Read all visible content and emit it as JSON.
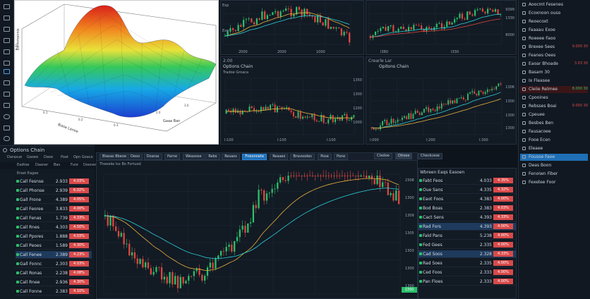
{
  "surface_panel": {
    "axis_label_left": "Eximmonnis",
    "axis_label_bottom": "Biasa Lanoe",
    "axis_label_right": "Gaaa Ban"
  },
  "top_chart_1": {
    "price_labels": [
      "Exp",
      "",
      "Exp",
      ""
    ],
    "time_labels": [
      "2000",
      "2000",
      "1000"
    ]
  },
  "top_chart_2": {
    "price_labels": [
      "9399",
      "1330",
      "8000",
      "3300"
    ],
    "time_labels": [
      "I380",
      "I330"
    ]
  },
  "mid_chart_1": {
    "title": "Options Chain",
    "subtitle": "Tradoe Groaca",
    "subtitle_2": "2:00",
    "price_labels": [
      "1350",
      "1300",
      "1200",
      "1000",
      "1200"
    ],
    "time_labels": [
      "I:100",
      "I:100",
      "I:100"
    ]
  },
  "mid_chart_2": {
    "title": "Opitons Chain",
    "price_labels": [
      "1306",
      "1300",
      "1300",
      "1300"
    ],
    "time_labels": [
      "I:000",
      "I:200",
      "I:300"
    ],
    "tag": "Crearle Lar"
  },
  "options_chain": {
    "title": "Options Chain",
    "toolbar": [
      "Daraxue",
      "Gaoee",
      "Daoe",
      "Poat",
      "Opn Goaco"
    ],
    "toolbar2": [
      "Eadtoe",
      "Daaner",
      "Bas",
      "Fure",
      "Doones"
    ],
    "col_header": "Ereet Eagee",
    "rows": [
      {
        "name": "Call Fesnse",
        "price": "2.933",
        "pct": "4.03%",
        "color": "#d94a4a"
      },
      {
        "name": "Call Phonse",
        "price": "2.939",
        "pct": "6.02%",
        "color": "#d94a4a"
      },
      {
        "name": "Gall Frone",
        "price": "4.389",
        "pct": "4.05%",
        "color": "#d94a4a"
      },
      {
        "name": "Call Feoree",
        "price": "3.833",
        "pct": "4.00%",
        "color": "#d94a4a"
      },
      {
        "name": "Call Fenas",
        "price": "1.739",
        "pct": "4.33%",
        "color": "#d94a4a"
      },
      {
        "name": "Call Rnes",
        "price": "4.303",
        "pct": "4.50%",
        "color": "#d94a4a"
      },
      {
        "name": "Call Ppores",
        "price": "1.888",
        "pct": "4.03%",
        "color": "#d94a4a"
      },
      {
        "name": "Call Peoes",
        "price": "1.589",
        "pct": "4.30%",
        "color": "#d94a4a"
      },
      {
        "name": "Call Fenee",
        "price": "2.389",
        "pct": "4.23%",
        "color": "#d94a4a"
      },
      {
        "name": "Gall Fonnc",
        "price": "2.303",
        "pct": "4.03%",
        "color": "#d94a4a"
      },
      {
        "name": "Call Ronas",
        "price": "2.238",
        "pct": "4.08%",
        "color": "#d94a4a"
      },
      {
        "name": "Call Rnee",
        "price": "2.936",
        "pct": "4.30%",
        "color": "#d94a4a"
      },
      {
        "name": "Call Fonne",
        "price": "2.383",
        "pct": "4.10%",
        "color": "#d94a4a"
      }
    ]
  },
  "main_chart": {
    "tabs": [
      "Blaoas Bbeoe",
      "Deoo",
      "Doaras",
      "Parne",
      "Weaoose",
      "Rebs",
      "Resaos",
      "Fneonnete",
      "Reaaes",
      "Bravoodes",
      "Pose",
      "Pone"
    ],
    "subtitle": "Theeeke Isx Bo Fortuod",
    "toolbar": [
      "Ctedoe",
      "Ditoee",
      "Checkcese"
    ],
    "price_labels": [
      "2308",
      "1300",
      "1309",
      "1305",
      "1303",
      "1300",
      "1300"
    ],
    "price_tag": "1350"
  },
  "right_chain": {
    "title": "Wbreen Eaqs Easoen",
    "rows": [
      {
        "name": "Fabt Feos",
        "price": "4.033",
        "pct": "4.35%",
        "color": "#d94a4a"
      },
      {
        "name": "Oue Sans",
        "price": "4.335",
        "pct": "4.32%",
        "color": "#d94a4a"
      },
      {
        "name": "Eaot Foos",
        "price": "4.383",
        "pct": "4.00%",
        "color": "#d94a4a"
      },
      {
        "name": "Bod Boas",
        "price": "2.383",
        "pct": "4.03%",
        "color": "#d94a4a"
      },
      {
        "name": "Cact Sens",
        "price": "4.393",
        "pct": "4.33%",
        "color": "#d94a4a"
      },
      {
        "name": "Rad Fors",
        "price": "4.393",
        "pct": "4.00%",
        "color": "#d94a4a"
      },
      {
        "name": "Fald Pans",
        "price": "5.238",
        "pct": "4.00%",
        "color": "#d94a4a"
      },
      {
        "name": "Fed Gees",
        "price": "2.335",
        "pct": "4.00%",
        "color": "#d94a4a"
      },
      {
        "name": "Cad Soos",
        "price": "2.328",
        "pct": "4.33%",
        "color": "#d94a4a"
      },
      {
        "name": "Rad Soes",
        "price": "2.335",
        "pct": "4.00%",
        "color": "#d94a4a"
      },
      {
        "name": "Ced Foos",
        "price": "2.333",
        "pct": "4.00%",
        "color": "#d94a4a"
      },
      {
        "name": "Pan Floes",
        "price": "2.333",
        "pct": "4.00%",
        "color": "#d94a4a"
      }
    ]
  },
  "right_panel": {
    "items": [
      "Aoocmt Fesenes",
      "Ecoxnoon ouso",
      "Reoecoxt",
      "Faaaau Exoe",
      "Roeeee Faoo",
      "Brexee Sees",
      "Feanes Oees",
      "Eaoar Bhoade",
      "Basam 30",
      "Ix Fleasee",
      "Cleiie Relmee",
      "Cpooines",
      "Rebsses Boai",
      "Cpeuee",
      "Besbes Ben",
      "Fausacoee",
      "Fooe Ecen",
      "Eleaee",
      "Fousoe Faoe",
      "Deas Boon",
      "Fenoiwn Fiber",
      "Fexetee Foor"
    ],
    "values": [
      "9.000 30",
      "3.03 30",
      "8.000 30",
      "9.000 30"
    ]
  }
}
